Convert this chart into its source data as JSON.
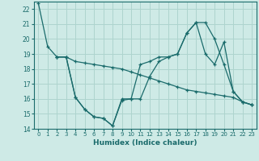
{
  "xlabel": "Humidex (Indice chaleur)",
  "xlim": [
    -0.5,
    23.5
  ],
  "ylim": [
    14,
    22.5
  ],
  "yticks": [
    14,
    15,
    16,
    17,
    18,
    19,
    20,
    21,
    22
  ],
  "xticks": [
    0,
    1,
    2,
    3,
    4,
    5,
    6,
    7,
    8,
    9,
    10,
    11,
    12,
    13,
    14,
    15,
    16,
    17,
    18,
    19,
    20,
    21,
    22,
    23
  ],
  "background_color": "#ceeae6",
  "grid_color": "#aed4ce",
  "line_color": "#1a6b6b",
  "lines": [
    {
      "x": [
        0,
        1,
        2,
        3,
        4,
        5,
        6,
        7,
        8,
        9,
        10,
        11,
        12,
        13,
        14,
        15,
        16,
        17,
        18,
        19,
        20,
        21,
        22,
        23
      ],
      "y": [
        22.4,
        19.5,
        18.8,
        18.8,
        16.1,
        15.3,
        14.8,
        14.7,
        14.2,
        15.9,
        16.0,
        16.0,
        17.5,
        18.5,
        18.8,
        19.0,
        20.4,
        21.1,
        21.1,
        20.0,
        18.3,
        16.5,
        15.8,
        15.6
      ]
    },
    {
      "x": [
        2,
        3,
        4,
        5,
        6,
        7,
        8,
        9,
        10,
        11,
        12,
        13,
        14,
        15,
        16,
        17,
        18,
        19,
        20,
        21,
        22,
        23
      ],
      "y": [
        18.8,
        18.8,
        18.5,
        18.4,
        18.3,
        18.2,
        18.1,
        18.0,
        17.8,
        17.6,
        17.4,
        17.2,
        17.0,
        16.8,
        16.6,
        16.5,
        16.4,
        16.3,
        16.2,
        16.1,
        15.8,
        15.6
      ]
    },
    {
      "x": [
        2,
        3,
        4,
        5,
        6,
        7,
        8,
        9,
        10,
        11,
        12,
        13,
        14,
        15,
        16,
        17,
        18,
        19,
        20,
        21,
        22,
        23
      ],
      "y": [
        18.8,
        18.8,
        16.1,
        15.3,
        14.8,
        14.7,
        14.2,
        16.0,
        16.0,
        18.3,
        18.5,
        18.8,
        18.8,
        19.0,
        20.4,
        21.1,
        19.0,
        18.3,
        19.8,
        16.5,
        15.8,
        15.6
      ]
    }
  ]
}
